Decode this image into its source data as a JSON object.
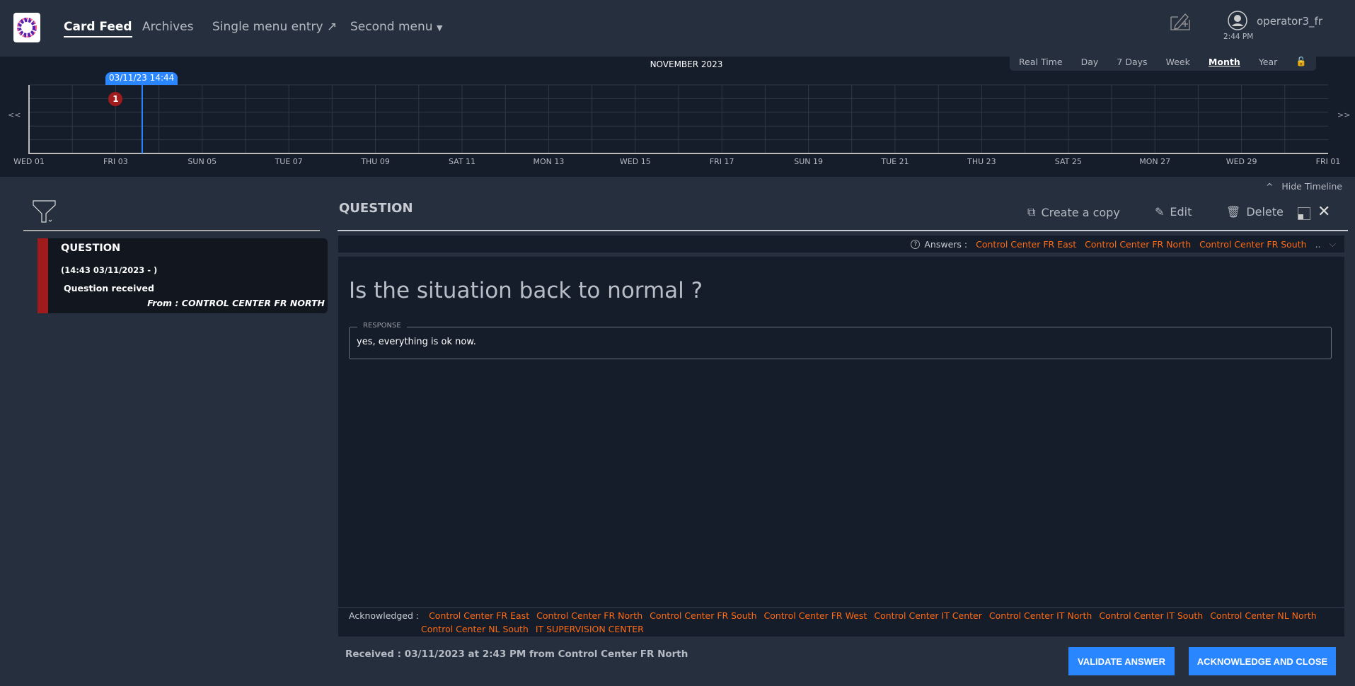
{
  "header": {
    "nav": [
      {
        "label": "Card Feed",
        "active": true
      },
      {
        "label": "Archives"
      },
      {
        "label": "Single menu entry",
        "icon": "external-link-icon"
      },
      {
        "label": "Second menu",
        "icon": "caret-down-icon"
      }
    ],
    "user": "operator3_fr",
    "time": "2:44 PM"
  },
  "timeline": {
    "month": "NOVEMBER 2023",
    "periods": [
      "Real Time",
      "Day",
      "7 Days",
      "Week",
      "Month",
      "Year"
    ],
    "selected_period": "Month",
    "prev": "<<",
    "next": ">>",
    "now_label": "03/11/23 14:44",
    "now": "2023-11-03T14:44",
    "ticks": [
      "WED 01",
      "FRI 03",
      "SUN 05",
      "TUE 07",
      "THU 09",
      "SAT 11",
      "MON 13",
      "WED 15",
      "FRI 17",
      "SUN 19",
      "TUE 21",
      "THU 23",
      "SAT 25",
      "MON 27",
      "WED 29",
      "FRI 01"
    ],
    "markers": [
      {
        "date": "2023-11-03",
        "count": "1",
        "color": "#a01c1c"
      }
    ],
    "now_color": "#2a86ff",
    "hide_label": "Hide Timeline",
    "hide_icon": "^"
  },
  "feed": {
    "card": {
      "title": "QUESTION",
      "date": "(14:43 03/11/2023 - )",
      "summary": "Question received",
      "from": "From : CONTROL CENTER FR NORTH",
      "severity_color": "#a01c1c"
    }
  },
  "detail": {
    "title": "QUESTION",
    "actions": {
      "copy": "Create a copy",
      "edit": "Edit",
      "delete": "Delete"
    },
    "answers_label": "Answers :",
    "answers": [
      "Control Center FR East",
      "Control Center FR North",
      "Control Center FR South"
    ],
    "answers_more": "..",
    "question": "Is the situation back to normal ?",
    "response_label": "RESPONSE",
    "response_value": "yes, everything is ok now.",
    "ack_label": "Acknowledged :",
    "acknowledged": [
      "Control Center FR East",
      "Control Center FR North",
      "Control Center FR South",
      "Control Center FR West",
      "Control Center IT Center",
      "Control Center IT North",
      "Control Center IT South",
      "Control Center NL North",
      "Control Center NL South",
      "IT SUPERVISION CENTER"
    ],
    "received": "Received : 03/11/2023 at 2:43 PM from Control Center FR North",
    "validate": "VALIDATE ANSWER",
    "ack_close": "ACKNOWLEDGE AND CLOSE"
  },
  "colors": {
    "accent": "#2a86ff",
    "entity": "#ff6a13",
    "bg": "#262f3e",
    "panel": "#151d2b"
  }
}
